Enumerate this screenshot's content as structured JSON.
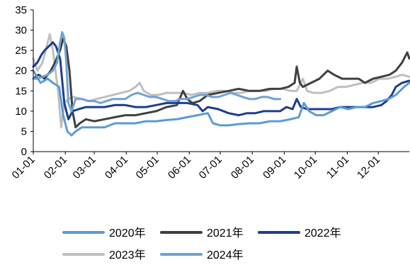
{
  "chart_data": {
    "type": "line",
    "title": "",
    "xlabel": "",
    "ylabel": "",
    "ylim": [
      0,
      35
    ],
    "yticks": [
      0,
      5,
      10,
      15,
      20,
      25,
      30,
      35
    ],
    "xticks": [
      "01-01",
      "02-01",
      "03-01",
      "04-01",
      "05-01",
      "06-01",
      "07-01",
      "08-01",
      "09-01",
      "10-01",
      "11-01",
      "12-01"
    ],
    "x_unit": "day_of_year",
    "x_range": [
      1,
      365
    ],
    "legend_position": "bottom",
    "grid": false,
    "series": [
      {
        "name": "2020年",
        "color": "#5b9bd5",
        "points": [
          [
            1,
            20
          ],
          [
            8,
            17
          ],
          [
            15,
            18
          ],
          [
            20,
            17
          ],
          [
            26,
            16
          ],
          [
            30,
            9
          ],
          [
            34,
            5
          ],
          [
            38,
            4
          ],
          [
            42,
            5
          ],
          [
            48,
            6
          ],
          [
            55,
            6
          ],
          [
            63,
            6
          ],
          [
            70,
            6
          ],
          [
            80,
            7
          ],
          [
            90,
            7
          ],
          [
            100,
            7
          ],
          [
            110,
            7.5
          ],
          [
            120,
            7.5
          ],
          [
            130,
            7.8
          ],
          [
            140,
            8
          ],
          [
            150,
            8.5
          ],
          [
            160,
            9
          ],
          [
            170,
            9.5
          ],
          [
            175,
            7
          ],
          [
            182,
            6.5
          ],
          [
            190,
            6.5
          ],
          [
            200,
            6.8
          ],
          [
            210,
            7
          ],
          [
            220,
            7
          ],
          [
            230,
            7.5
          ],
          [
            240,
            7.5
          ],
          [
            250,
            8
          ],
          [
            258,
            8.5
          ],
          [
            263,
            12
          ],
          [
            268,
            10
          ],
          [
            275,
            9
          ],
          [
            282,
            9
          ],
          [
            290,
            10
          ],
          [
            298,
            11
          ],
          [
            306,
            10.5
          ],
          [
            314,
            11
          ],
          [
            322,
            11
          ],
          [
            330,
            12
          ],
          [
            338,
            12.5
          ],
          [
            345,
            13
          ],
          [
            352,
            14
          ],
          [
            360,
            16
          ],
          [
            365,
            17
          ]
        ]
      },
      {
        "name": "2021年",
        "color": "#404040",
        "points": [
          [
            1,
            18
          ],
          [
            6,
            19
          ],
          [
            12,
            18
          ],
          [
            18,
            20
          ],
          [
            22,
            22
          ],
          [
            27,
            25
          ],
          [
            30,
            28
          ],
          [
            33,
            26
          ],
          [
            36,
            20
          ],
          [
            39,
            10
          ],
          [
            42,
            6
          ],
          [
            46,
            7
          ],
          [
            52,
            8
          ],
          [
            60,
            7.5
          ],
          [
            70,
            8
          ],
          [
            80,
            8.5
          ],
          [
            90,
            9
          ],
          [
            100,
            9
          ],
          [
            110,
            9.5
          ],
          [
            120,
            10
          ],
          [
            130,
            11
          ],
          [
            140,
            11.5
          ],
          [
            146,
            15
          ],
          [
            150,
            13
          ],
          [
            155,
            12
          ],
          [
            162,
            12.5
          ],
          [
            170,
            14
          ],
          [
            180,
            14.5
          ],
          [
            190,
            15
          ],
          [
            200,
            15.5
          ],
          [
            210,
            15
          ],
          [
            220,
            15
          ],
          [
            230,
            15.5
          ],
          [
            240,
            15.5
          ],
          [
            248,
            16
          ],
          [
            254,
            17
          ],
          [
            256,
            21
          ],
          [
            259,
            17
          ],
          [
            262,
            16
          ],
          [
            270,
            17
          ],
          [
            278,
            18
          ],
          [
            286,
            20
          ],
          [
            292,
            19
          ],
          [
            300,
            18
          ],
          [
            308,
            18
          ],
          [
            316,
            18
          ],
          [
            322,
            17
          ],
          [
            330,
            18
          ],
          [
            338,
            18.5
          ],
          [
            346,
            19
          ],
          [
            352,
            20
          ],
          [
            358,
            22
          ],
          [
            363,
            24.5
          ],
          [
            365,
            23
          ]
        ]
      },
      {
        "name": "2022年",
        "color": "#1f3d8c",
        "points": [
          [
            1,
            21
          ],
          [
            5,
            22
          ],
          [
            9,
            24
          ],
          [
            12,
            25
          ],
          [
            16,
            26
          ],
          [
            20,
            27
          ],
          [
            23,
            26
          ],
          [
            27,
            23
          ],
          [
            31,
            12
          ],
          [
            35,
            8
          ],
          [
            39,
            10
          ],
          [
            45,
            10.5
          ],
          [
            52,
            11
          ],
          [
            60,
            11
          ],
          [
            70,
            11
          ],
          [
            80,
            11.5
          ],
          [
            90,
            11.5
          ],
          [
            100,
            11
          ],
          [
            110,
            11
          ],
          [
            120,
            11.5
          ],
          [
            130,
            12
          ],
          [
            140,
            12
          ],
          [
            150,
            12
          ],
          [
            160,
            11.5
          ],
          [
            165,
            10
          ],
          [
            170,
            11
          ],
          [
            180,
            10.5
          ],
          [
            190,
            9.5
          ],
          [
            200,
            9
          ],
          [
            208,
            9.5
          ],
          [
            216,
            9.5
          ],
          [
            224,
            10
          ],
          [
            232,
            10
          ],
          [
            240,
            10
          ],
          [
            246,
            11
          ],
          [
            252,
            10.5
          ],
          [
            256,
            13
          ],
          [
            260,
            11
          ],
          [
            266,
            10.5
          ],
          [
            274,
            10.5
          ],
          [
            282,
            10.5
          ],
          [
            290,
            10.5
          ],
          [
            298,
            11
          ],
          [
            306,
            11
          ],
          [
            314,
            11
          ],
          [
            322,
            11
          ],
          [
            330,
            11
          ],
          [
            338,
            11.5
          ],
          [
            343,
            12.5
          ],
          [
            348,
            14
          ],
          [
            352,
            16
          ],
          [
            358,
            17
          ],
          [
            365,
            17.5
          ]
        ]
      },
      {
        "name": "2023年",
        "color": "#bfbfbf",
        "points": [
          [
            1,
            23
          ],
          [
            5,
            20
          ],
          [
            10,
            22
          ],
          [
            15,
            27
          ],
          [
            17,
            29
          ],
          [
            20,
            25
          ],
          [
            25,
            15
          ],
          [
            28,
            6
          ],
          [
            31,
            12
          ],
          [
            35,
            13
          ],
          [
            40,
            13.5
          ],
          [
            48,
            13
          ],
          [
            55,
            12.5
          ],
          [
            62,
            13
          ],
          [
            70,
            13.5
          ],
          [
            78,
            14
          ],
          [
            86,
            14.5
          ],
          [
            94,
            15
          ],
          [
            100,
            16
          ],
          [
            104,
            17
          ],
          [
            108,
            15
          ],
          [
            115,
            14
          ],
          [
            122,
            14
          ],
          [
            130,
            14.5
          ],
          [
            138,
            14.5
          ],
          [
            146,
            14.5
          ],
          [
            154,
            14
          ],
          [
            162,
            14.5
          ],
          [
            170,
            14.5
          ],
          [
            178,
            15
          ],
          [
            186,
            15
          ],
          [
            194,
            14.5
          ],
          [
            202,
            14.5
          ],
          [
            210,
            15
          ],
          [
            218,
            15
          ],
          [
            226,
            15
          ],
          [
            234,
            15.5
          ],
          [
            242,
            15.5
          ],
          [
            250,
            15
          ],
          [
            256,
            15
          ],
          [
            262,
            18
          ],
          [
            266,
            15
          ],
          [
            272,
            14.5
          ],
          [
            280,
            14.5
          ],
          [
            288,
            15
          ],
          [
            296,
            16
          ],
          [
            304,
            16
          ],
          [
            312,
            16.5
          ],
          [
            320,
            17
          ],
          [
            328,
            17
          ],
          [
            336,
            18
          ],
          [
            344,
            18
          ],
          [
            352,
            18.5
          ],
          [
            358,
            19
          ],
          [
            365,
            18.5
          ]
        ]
      },
      {
        "name": "2024年",
        "color": "#6fa3d4",
        "points": [
          [
            1,
            18
          ],
          [
            5,
            18
          ],
          [
            10,
            18.5
          ],
          [
            15,
            19
          ],
          [
            20,
            20
          ],
          [
            24,
            22
          ],
          [
            27,
            27
          ],
          [
            29,
            29.5
          ],
          [
            31,
            28
          ],
          [
            33,
            22
          ],
          [
            35,
            12
          ],
          [
            38,
            10
          ],
          [
            42,
            13
          ],
          [
            48,
            13
          ],
          [
            54,
            12.5
          ],
          [
            60,
            12.5
          ],
          [
            66,
            12
          ],
          [
            72,
            12.5
          ],
          [
            78,
            13
          ],
          [
            84,
            13
          ],
          [
            90,
            13
          ],
          [
            96,
            14
          ],
          [
            102,
            14.5
          ],
          [
            108,
            14
          ],
          [
            114,
            13.5
          ],
          [
            120,
            13.5
          ],
          [
            126,
            13
          ],
          [
            132,
            12.5
          ],
          [
            138,
            12.5
          ],
          [
            144,
            13
          ],
          [
            150,
            13
          ],
          [
            156,
            13.5
          ],
          [
            162,
            14
          ],
          [
            168,
            14
          ],
          [
            174,
            13.5
          ],
          [
            180,
            13.5
          ],
          [
            186,
            14
          ],
          [
            192,
            14.5
          ],
          [
            198,
            14
          ],
          [
            204,
            13.5
          ],
          [
            210,
            13
          ],
          [
            216,
            13
          ],
          [
            222,
            13.5
          ],
          [
            228,
            13.5
          ],
          [
            234,
            13
          ],
          [
            240,
            13
          ]
        ]
      }
    ]
  }
}
